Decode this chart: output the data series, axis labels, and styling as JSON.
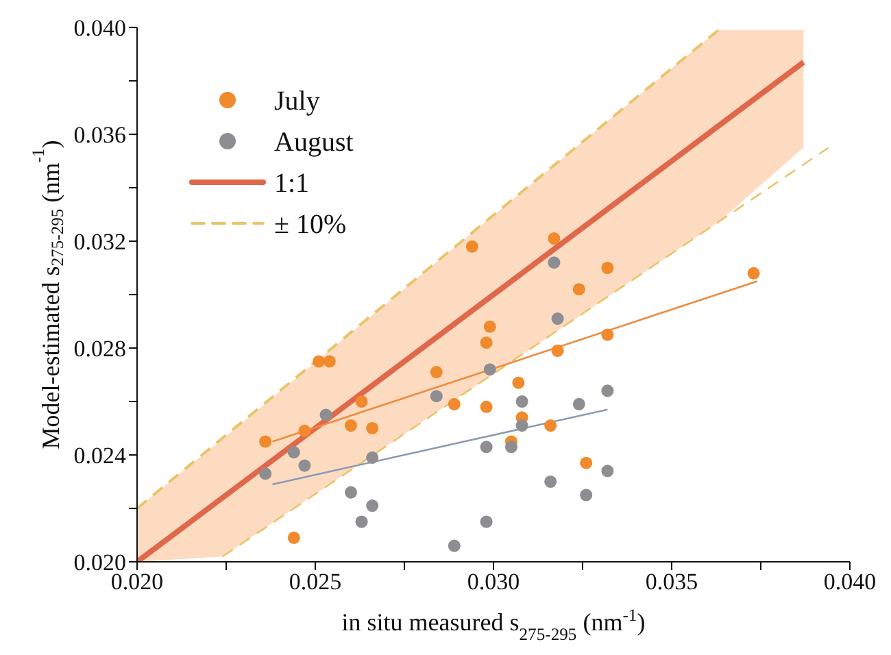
{
  "chart_data": {
    "type": "scatter",
    "xlabel": "in situ measured s$_{275-295}$ (nm$^{-1}$)",
    "ylabel": "Model-estimated s$_{275-295}$ (nm$^{-1}$)",
    "xlim": [
      0.02,
      0.04
    ],
    "ylim": [
      0.02,
      0.04
    ],
    "xticks": [
      {
        "value": 0.02,
        "label": "0.020"
      },
      {
        "value": 0.0225,
        "label": null
      },
      {
        "value": 0.025,
        "label": "0.025"
      },
      {
        "value": 0.0275,
        "label": null
      },
      {
        "value": 0.03,
        "label": "0.030"
      },
      {
        "value": 0.0325,
        "label": null
      },
      {
        "value": 0.035,
        "label": "0.035"
      },
      {
        "value": 0.0375,
        "label": null
      },
      {
        "value": 0.04,
        "label": "0.040"
      }
    ],
    "yticks": [
      {
        "value": 0.02,
        "label": "0.020"
      },
      {
        "value": 0.022,
        "label": null
      },
      {
        "value": 0.024,
        "label": "0.024"
      },
      {
        "value": 0.026,
        "label": null
      },
      {
        "value": 0.028,
        "label": "0.028"
      },
      {
        "value": 0.03,
        "label": null
      },
      {
        "value": 0.032,
        "label": "0.032"
      },
      {
        "value": 0.034,
        "label": null
      },
      {
        "value": 0.036,
        "label": "0.036"
      },
      {
        "value": 0.038,
        "label": null
      },
      {
        "value": 0.04,
        "label": "0.040"
      }
    ],
    "grid": false,
    "legend": "top left",
    "marker": "circle",
    "series": [
      {
        "type": "line",
        "name": "1:1",
        "color": "#e0684a",
        "line_style": "solid",
        "marker": "none",
        "x": [
          0.02,
          0.0224,
          0.0363,
          0.0387
        ],
        "values": [
          0.02,
          0.0224,
          0.0363,
          0.0387
        ],
        "lower": [
          0.02,
          0.0202,
          0.0327,
          0.0355
        ],
        "upper": [
          0.022,
          0.0246,
          0.0399,
          0.0399
        ]
      },
      {
        "type": "line",
        "name": "± 10%",
        "color": "#e9c46a",
        "line_style": "dashed",
        "marker": "none",
        "x": [
          0.02,
          0.0364
        ],
        "values": [
          0.022,
          0.04
        ]
      },
      {
        "type": "line",
        "color": "#e9c46a",
        "line_style": "dashed",
        "marker": "none",
        "x": [
          0.0224,
          0.0394
        ],
        "values": [
          0.0202,
          0.0355
        ]
      },
      {
        "type": "line",
        "color": "#f08a3c",
        "line_style": "solid",
        "marker": "none",
        "x": [
          0.0238,
          0.0374
        ],
        "values": [
          0.0245,
          0.0305
        ]
      },
      {
        "type": "line",
        "color": "#8a9bb0",
        "line_style": "solid",
        "marker": "none",
        "x": [
          0.0238,
          0.0332
        ],
        "values": [
          0.0229,
          0.0257
        ]
      },
      {
        "name": "July",
        "color": "#f08a2c",
        "x": [
          0.0294,
          0.0317,
          0.0332,
          0.0324,
          0.0299,
          0.0298,
          0.0332,
          0.0318,
          0.0284,
          0.0251,
          0.0254,
          0.0263,
          0.0307,
          0.0289,
          0.0298,
          0.0236,
          0.0247,
          0.026,
          0.0266,
          0.0308,
          0.0316,
          0.0305,
          0.0326,
          0.0244,
          0.0373
        ],
        "values": [
          0.0318,
          0.0321,
          0.031,
          0.0302,
          0.0288,
          0.0282,
          0.0285,
          0.0279,
          0.0271,
          0.0275,
          0.0275,
          0.026,
          0.0267,
          0.0259,
          0.0258,
          0.0245,
          0.0249,
          0.0251,
          0.025,
          0.0254,
          0.0251,
          0.0245,
          0.0237,
          0.0209,
          0.0308
        ]
      },
      {
        "name": "August",
        "color": "#8e8e92",
        "x": [
          0.0317,
          0.0318,
          0.0299,
          0.0284,
          0.0253,
          0.0308,
          0.0308,
          0.0324,
          0.0332,
          0.0266,
          0.0298,
          0.0305,
          0.0244,
          0.0247,
          0.0236,
          0.026,
          0.0266,
          0.0263,
          0.0298,
          0.0289,
          0.0316,
          0.0326,
          0.0332
        ],
        "values": [
          0.0312,
          0.0291,
          0.0272,
          0.0262,
          0.0255,
          0.026,
          0.0251,
          0.0259,
          0.0264,
          0.0239,
          0.0243,
          0.0243,
          0.0241,
          0.0236,
          0.0233,
          0.0226,
          0.0221,
          0.0215,
          0.0215,
          0.0206,
          0.023,
          0.0225,
          0.0234
        ]
      }
    ]
  }
}
